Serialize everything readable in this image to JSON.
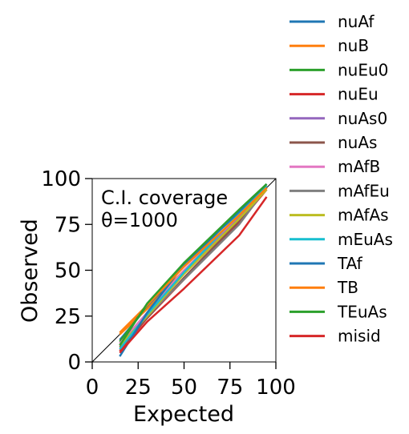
{
  "chart_data": {
    "type": "line",
    "xlabel": "Expected",
    "ylabel": "Observed",
    "xlim": [
      0,
      100
    ],
    "ylim": [
      0,
      100
    ],
    "xticks": [
      "0",
      "25",
      "50",
      "75",
      "100"
    ],
    "yticks": [
      "0",
      "25",
      "50",
      "75",
      "100"
    ],
    "annotation": [
      "C.I. coverage",
      "θ=1000"
    ],
    "reference_line": "y = x",
    "grid": false,
    "legend_position": "outside right",
    "x": [
      15,
      30,
      50,
      80,
      95
    ],
    "series": [
      {
        "name": "nuAf",
        "color": "#1f77b4",
        "values": [
          12,
          30,
          53,
          82,
          97
        ]
      },
      {
        "name": "nuB",
        "color": "#ff7f0e",
        "values": [
          15,
          29,
          50,
          79,
          95
        ]
      },
      {
        "name": "nuEu0",
        "color": "#2ca02c",
        "values": [
          11,
          31,
          54,
          83,
          97
        ]
      },
      {
        "name": "nuEu",
        "color": "#d62728",
        "values": [
          6,
          24,
          45,
          76,
          94
        ]
      },
      {
        "name": "nuAs0",
        "color": "#9467bd",
        "values": [
          10,
          26,
          49,
          79,
          96
        ]
      },
      {
        "name": "nuAs",
        "color": "#8c564b",
        "values": [
          8,
          24,
          46,
          77,
          95
        ]
      },
      {
        "name": "mAfB",
        "color": "#e377c2",
        "values": [
          10,
          27,
          50,
          80,
          96
        ]
      },
      {
        "name": "mAfEu",
        "color": "#7f7f7f",
        "values": [
          9,
          25,
          45,
          75,
          95
        ]
      },
      {
        "name": "mAfAs",
        "color": "#bcbd22",
        "values": [
          9,
          25,
          48,
          78,
          94
        ]
      },
      {
        "name": "mEuAs",
        "color": "#17becf",
        "values": [
          7,
          26,
          49,
          81,
          96
        ]
      },
      {
        "name": "TAf",
        "color": "#1f77b4",
        "values": [
          3,
          27,
          53,
          82,
          97
        ]
      },
      {
        "name": "TB",
        "color": "#ff7f0e",
        "values": [
          16,
          31,
          52,
          80,
          95
        ]
      },
      {
        "name": "TEuAs",
        "color": "#2ca02c",
        "values": [
          9,
          32,
          54,
          83,
          97
        ]
      },
      {
        "name": "misid",
        "color": "#d62728",
        "values": [
          5,
          22,
          40,
          69,
          90
        ]
      }
    ]
  }
}
